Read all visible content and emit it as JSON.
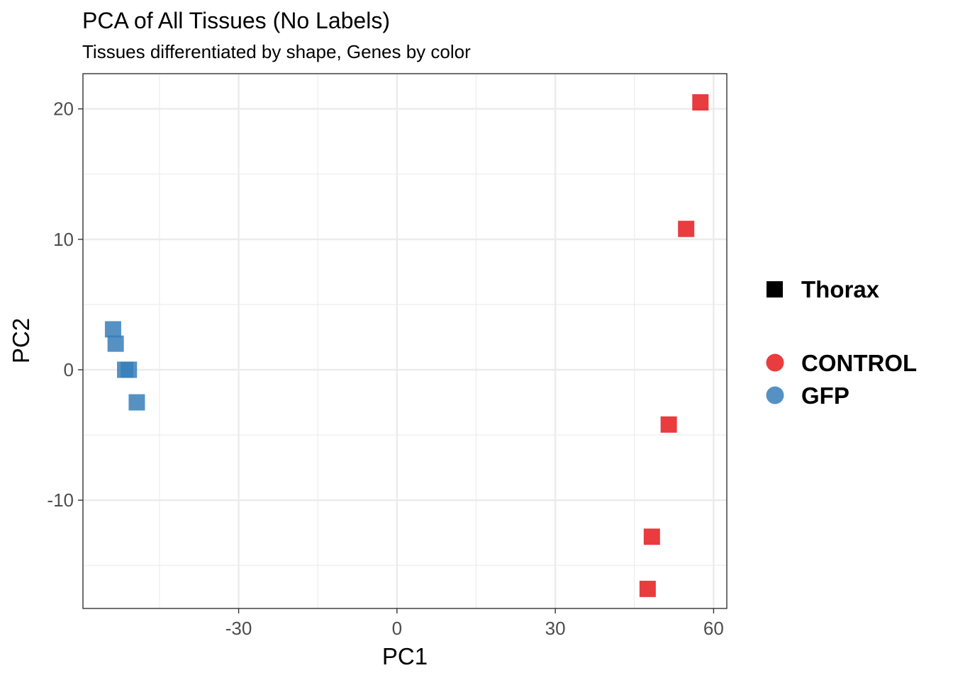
{
  "chart_data": {
    "type": "scatter",
    "title": "PCA of All Tissues (No Labels)",
    "subtitle": "Tissues differentiated by shape, Genes by color",
    "xlabel": "PC1",
    "ylabel": "PC2",
    "xlim": [
      -59.5,
      62.5
    ],
    "ylim": [
      -18.3,
      22.7
    ],
    "x_ticks": [
      {
        "value": -30,
        "label": "-30"
      },
      {
        "value": 0,
        "label": "0"
      },
      {
        "value": 30,
        "label": "30"
      },
      {
        "value": 60,
        "label": "60"
      }
    ],
    "y_ticks": [
      {
        "value": -10,
        "label": "-10"
      },
      {
        "value": 0,
        "label": "0"
      },
      {
        "value": 10,
        "label": "10"
      },
      {
        "value": 20,
        "label": "20"
      }
    ],
    "x_minor_gridlines": [
      -45,
      -15,
      15,
      45
    ],
    "y_minor_gridlines": [
      -15,
      -5,
      5,
      15
    ],
    "grid": true,
    "legend_position": "right",
    "shape_legend": [
      {
        "label": "Thorax",
        "shape": "square"
      }
    ],
    "color_legend": [
      {
        "label": "CONTROL",
        "color": "#e41a1c"
      },
      {
        "label": "GFP",
        "color": "#377eb8"
      }
    ],
    "series": [
      {
        "name": "CONTROL",
        "color": "#e41a1c",
        "shape": "square",
        "tissue": "Thorax",
        "x": [
          57.5,
          54.8,
          51.5,
          48.3,
          47.5
        ],
        "y": [
          20.5,
          10.8,
          -4.2,
          -12.8,
          -16.8
        ]
      },
      {
        "name": "GFP",
        "color": "#377eb8",
        "shape": "square",
        "tissue": "Thorax",
        "x": [
          -53.8,
          -53.3,
          -51.5,
          -50.8,
          -49.3
        ],
        "y": [
          3.1,
          2.0,
          0.0,
          0.0,
          -2.5
        ]
      }
    ]
  }
}
